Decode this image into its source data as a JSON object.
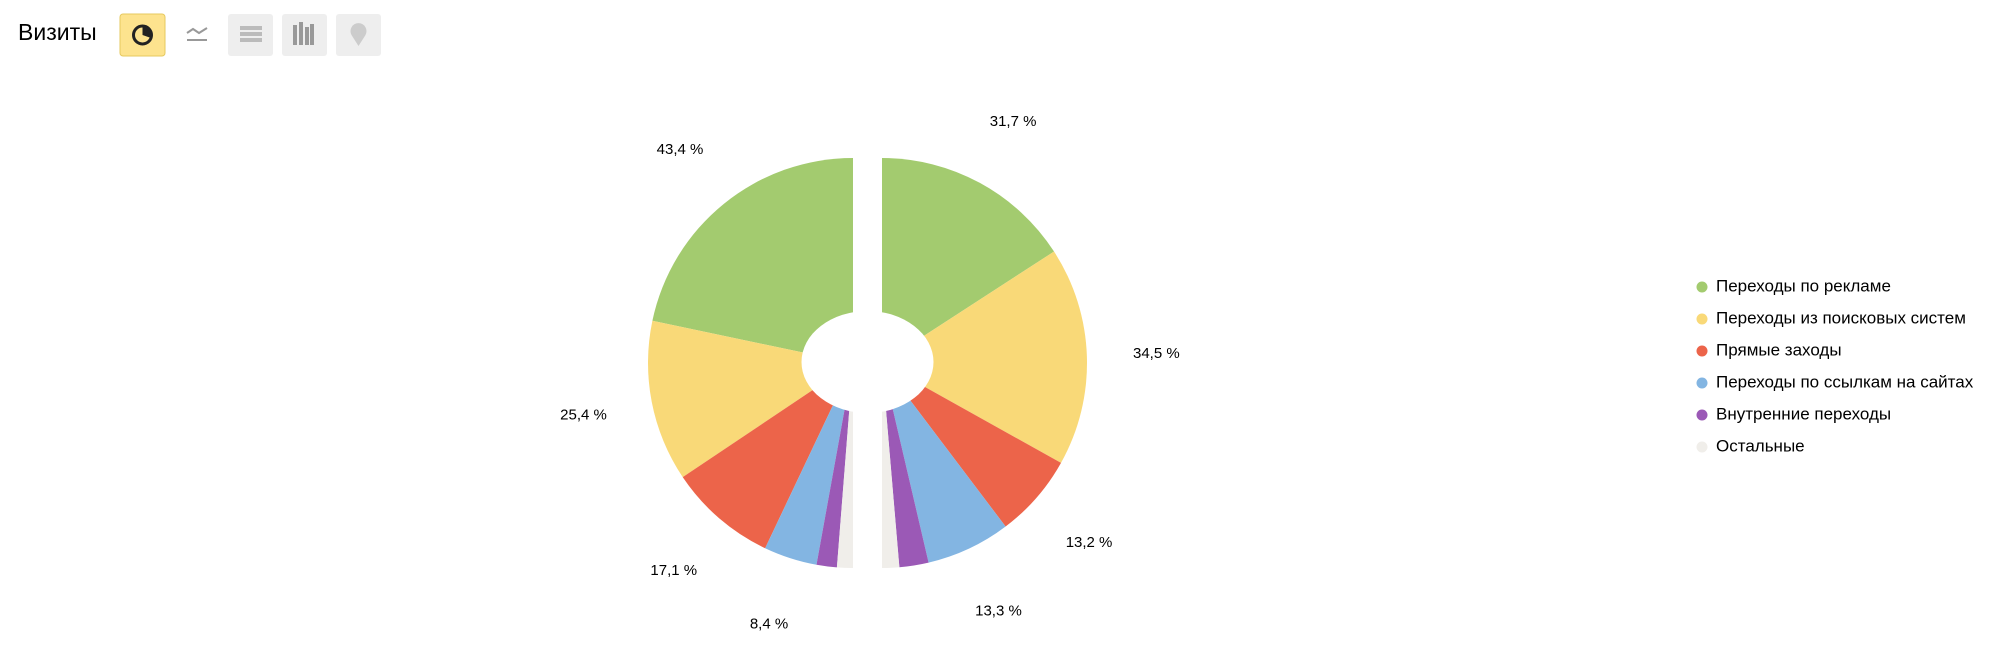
{
  "header": {
    "title": "Визиты"
  },
  "chart_data": {
    "type": "pie",
    "categories": [
      "Переходы по рекламе",
      "Переходы из поисковых систем",
      "Прямые заходы",
      "Переходы по ссылкам на сайтах",
      "Внутренние переходы",
      "Остальные"
    ],
    "colors": [
      "#a3cb6f",
      "#f9d978",
      "#ec644a",
      "#83b5e2",
      "#9b59b6",
      "#f0eeea"
    ],
    "series": [
      {
        "values": [
          43.4,
          25.4,
          17.1,
          8.4,
          3.2,
          2.5
        ],
        "value_labels": [
          "43,4 %",
          "25,4 %",
          "17,1 %",
          "8,4 %",
          null,
          null
        ]
      },
      {
        "values": [
          31.7,
          34.5,
          13.2,
          13.3,
          4.6,
          2.7
        ],
        "value_labels": [
          "31,7 %",
          "34,5 %",
          "13,2 %",
          "13,3 %",
          null,
          null
        ]
      }
    ],
    "legend": "right"
  }
}
